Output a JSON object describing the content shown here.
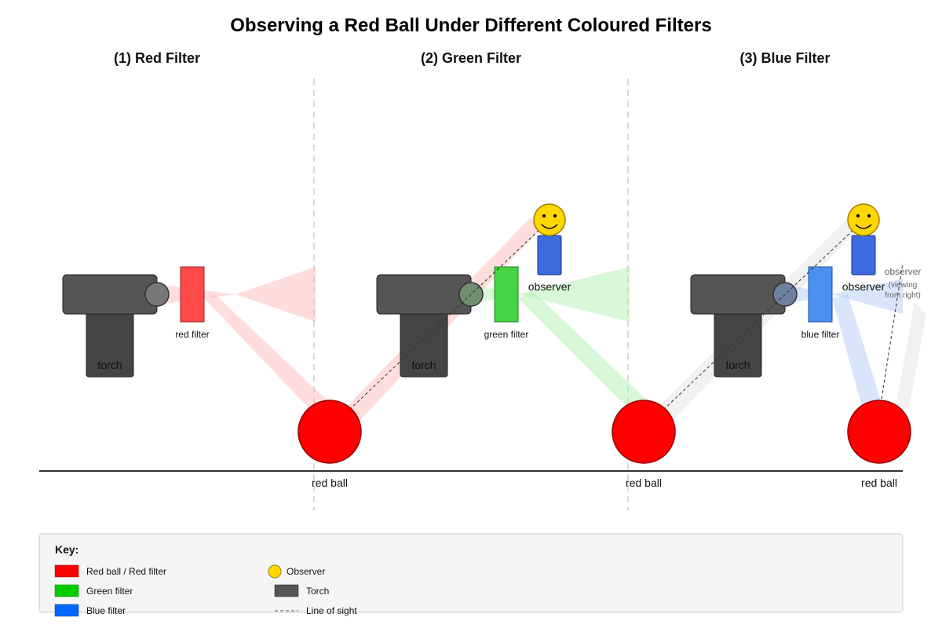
{
  "title": "Observing a Red Ball Under Different Coloured Filters",
  "panels": [
    {
      "title": "(1) Red Filter",
      "filter_label": "red filter",
      "torch_label": "torch",
      "ball_label": "red ball",
      "filter_color": "#ff4a4a"
    },
    {
      "title": "(2) Green Filter",
      "filter_label": "green filter",
      "torch_label": "torch",
      "ball_label": "red ball",
      "observer_label": "observer",
      "filter_color": "#44d444"
    },
    {
      "title": "(3) Blue Filter",
      "filter_label": "blue filter",
      "torch_label": "torch",
      "ball_label": "red ball",
      "observer_label": "observer",
      "observer_note_1": "observer",
      "observer_note_2": "(viewing",
      "observer_note_3": "from right)",
      "filter_color": "#4a90f0"
    }
  ],
  "key": {
    "title": "Key:",
    "items": [
      {
        "label": "Red ball / Red filter",
        "color": "#ff0000"
      },
      {
        "label": "Green filter",
        "color": "#00cc00"
      },
      {
        "label": "Blue filter",
        "color": "#0066ff"
      },
      {
        "label": "Observer",
        "color": "#ffd700"
      },
      {
        "label": "Torch",
        "color": "#555555"
      },
      {
        "label": "Line of sight",
        "color": "#888888"
      }
    ]
  },
  "colors": {
    "ball": "#ff0000",
    "torch": "#555555",
    "torch_stand": "#444444",
    "observer_head": "#ffd700",
    "observer_body": "#3d6be0",
    "ground": "#333333"
  }
}
